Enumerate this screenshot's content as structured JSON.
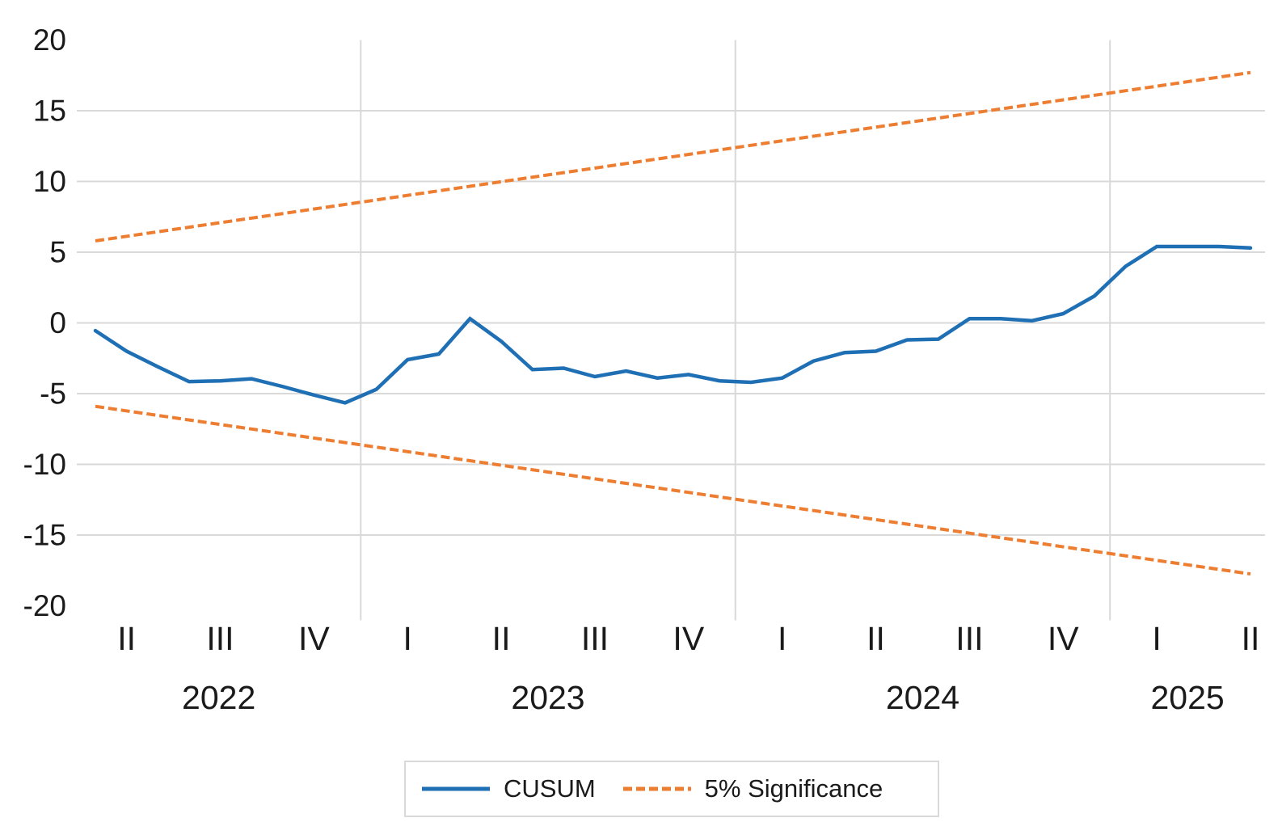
{
  "chart_data": {
    "type": "line",
    "title": "",
    "n_points": 38,
    "x_axis": {
      "tick_labels": [
        "II",
        "III",
        "IV",
        "I",
        "II",
        "III",
        "IV",
        "I",
        "II",
        "III",
        "IV",
        "I",
        "II"
      ],
      "year_labels": [
        "2022",
        "2023",
        "2024",
        "2025"
      ],
      "first_tick_point_index": 1,
      "points_per_tick": 3
    },
    "y_axis": {
      "min": -20,
      "max": 20,
      "step": 5,
      "tick_labels": [
        "20",
        "15",
        "10",
        "5",
        "0",
        "-5",
        "-10",
        "-15",
        "-20"
      ]
    },
    "grid": true,
    "legend_position": "bottom-center",
    "series": [
      {
        "name": "CUSUM",
        "line_style": "solid",
        "color": "#1F6FB5",
        "values": [
          -0.55,
          -2.0,
          -3.1,
          -4.15,
          -4.1,
          -3.95,
          -4.5,
          -5.1,
          -5.65,
          -4.7,
          -2.6,
          -2.2,
          0.3,
          -1.3,
          -3.3,
          -3.2,
          -3.8,
          -3.4,
          -3.9,
          -3.65,
          -4.1,
          -4.2,
          -3.9,
          -2.7,
          -2.1,
          -2.0,
          -1.2,
          -1.15,
          0.3,
          0.3,
          0.15,
          0.65,
          1.9,
          4.0,
          5.4,
          5.4,
          5.4,
          5.3
        ]
      },
      {
        "name": "5% Significance",
        "line_style": "dashed",
        "color": "#ED7D31",
        "upper_start": 5.8,
        "upper_end": 17.7,
        "lower_start": -5.9,
        "lower_end": -17.75
      }
    ]
  },
  "legend": {
    "items": [
      {
        "label": "CUSUM"
      },
      {
        "label": "5% Significance"
      }
    ]
  },
  "colors": {
    "cusum": "#1F6FB5",
    "significance": "#ED7D31",
    "gridline": "#D9D9D9",
    "text": "#1A1A1A",
    "legend_border": "#D9D9D9",
    "background": "#FFFFFF"
  }
}
